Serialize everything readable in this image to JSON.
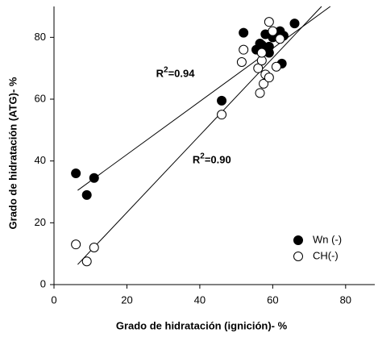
{
  "chart_data": {
    "type": "scatter",
    "x_label": "Grado de hidratación (ignición)- %",
    "y_label": "Grado de hidratación (ATG)- %",
    "xlim": [
      0,
      88
    ],
    "ylim": [
      0,
      90
    ],
    "xticks": [
      0,
      20,
      40,
      60,
      80
    ],
    "yticks": [
      0,
      20,
      40,
      60,
      80
    ],
    "legend": "lower right",
    "series": [
      {
        "name": "Wn (-)",
        "color": "#000000",
        "filled": true,
        "x": [
          6,
          9,
          11,
          46,
          52,
          55.5,
          56.5,
          57,
          58,
          58.5,
          59,
          59,
          60,
          61,
          62,
          62.5,
          63,
          66
        ],
        "values": [
          36,
          29,
          34.5,
          59.5,
          81.5,
          76,
          78,
          77.5,
          81,
          76,
          75,
          77,
          80,
          81,
          82,
          71.5,
          80.5,
          84.5
        ]
      },
      {
        "name": "CH(-)",
        "color": "#000000",
        "filled": false,
        "x": [
          6,
          9,
          11,
          46,
          51.5,
          52,
          56,
          57,
          56.5,
          57.5,
          58,
          59,
          59,
          61,
          62,
          60,
          57
        ],
        "values": [
          13,
          7.5,
          12,
          55,
          72,
          76,
          70,
          72.5,
          62,
          65,
          68,
          67,
          85,
          70.5,
          79.5,
          82,
          75
        ]
      }
    ],
    "fit_lines": [
      {
        "x": [
          6.5,
          75.8
        ],
        "values": [
          30.5,
          90
        ]
      },
      {
        "x": [
          6.5,
          73.4
        ],
        "values": [
          6.5,
          90
        ]
      }
    ],
    "annotations": [
      {
        "base": "R",
        "sup": "2",
        "rest": "=0.94",
        "x": 28,
        "y": 68
      },
      {
        "base": "R",
        "sup": "2",
        "rest": "=0.90",
        "x": 38,
        "y": 40
      }
    ]
  }
}
